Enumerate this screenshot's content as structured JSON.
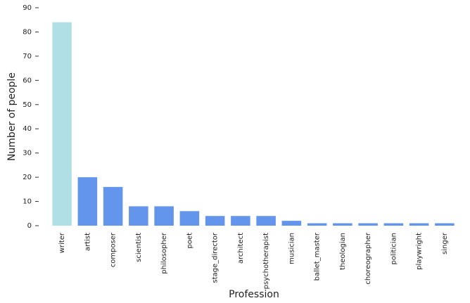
{
  "chart_data": {
    "type": "bar",
    "x_label": "Profession",
    "y_label": "Number of people",
    "categories": [
      "writer",
      "artist",
      "composer",
      "scientist",
      "philosopher",
      "poet",
      "stage_director",
      "architect",
      "psychotherapist",
      "musician",
      "ballet_master",
      "theologian",
      "choreographer",
      "politician",
      "playwright",
      "singer"
    ],
    "values": [
      84,
      20,
      16,
      8,
      8,
      6,
      4,
      4,
      4,
      2,
      1,
      1,
      1,
      1,
      1,
      1
    ],
    "colors": [
      "#b0e0e6",
      "#6495ed",
      "#6495ed",
      "#6495ed",
      "#6495ed",
      "#6495ed",
      "#6495ed",
      "#6495ed",
      "#6495ed",
      "#6495ed",
      "#6495ed",
      "#6495ed",
      "#6495ed",
      "#6495ed",
      "#6495ed",
      "#6495ed"
    ],
    "ylim": [
      0,
      90
    ],
    "yticks": [
      0,
      10,
      20,
      30,
      40,
      50,
      60,
      70,
      80,
      90
    ],
    "grid": false
  }
}
